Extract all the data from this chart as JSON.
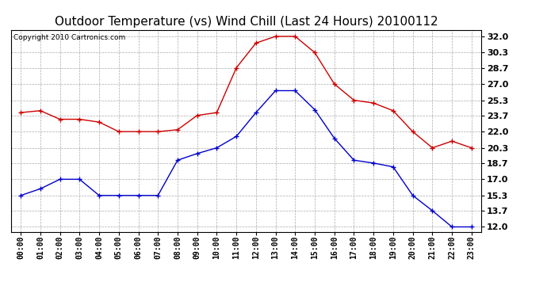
{
  "title": "Outdoor Temperature (vs) Wind Chill (Last 24 Hours) 20100112",
  "copyright": "Copyright 2010 Cartronics.com",
  "hours": [
    "00:00",
    "01:00",
    "02:00",
    "03:00",
    "04:00",
    "05:00",
    "06:00",
    "07:00",
    "08:00",
    "09:00",
    "10:00",
    "11:00",
    "12:00",
    "13:00",
    "14:00",
    "15:00",
    "16:00",
    "17:00",
    "18:00",
    "19:00",
    "20:00",
    "21:00",
    "22:00",
    "23:00"
  ],
  "temp": [
    24.0,
    24.2,
    23.3,
    23.3,
    23.0,
    22.0,
    22.0,
    22.0,
    22.2,
    23.7,
    24.0,
    28.7,
    31.3,
    32.0,
    32.0,
    30.3,
    27.0,
    25.3,
    25.0,
    24.2,
    22.0,
    20.3,
    21.0,
    20.3
  ],
  "wind_chill": [
    15.3,
    16.0,
    17.0,
    17.0,
    15.3,
    15.3,
    15.3,
    15.3,
    19.0,
    19.7,
    20.3,
    21.5,
    24.0,
    26.3,
    26.3,
    24.3,
    21.3,
    19.0,
    18.7,
    18.3,
    15.3,
    13.7,
    12.0,
    12.0
  ],
  "temp_color": "#cc0000",
  "wind_chill_color": "#0000cc",
  "background_color": "#ffffff",
  "plot_bg_color": "#ffffff",
  "grid_color": "#aaaaaa",
  "ylim": [
    11.5,
    32.7
  ],
  "yticks": [
    12.0,
    13.7,
    15.3,
    17.0,
    18.7,
    20.3,
    22.0,
    23.7,
    25.3,
    27.0,
    28.7,
    30.3,
    32.0
  ],
  "ytick_labels": [
    "12.0",
    "13.7",
    "15.3",
    "17.0",
    "18.7",
    "20.3",
    "22.0",
    "23.7",
    "25.3",
    "27.0",
    "28.7",
    "30.3",
    "32.0"
  ],
  "title_fontsize": 11,
  "copyright_fontsize": 6.5,
  "xtick_fontsize": 7,
  "ytick_fontsize": 8
}
